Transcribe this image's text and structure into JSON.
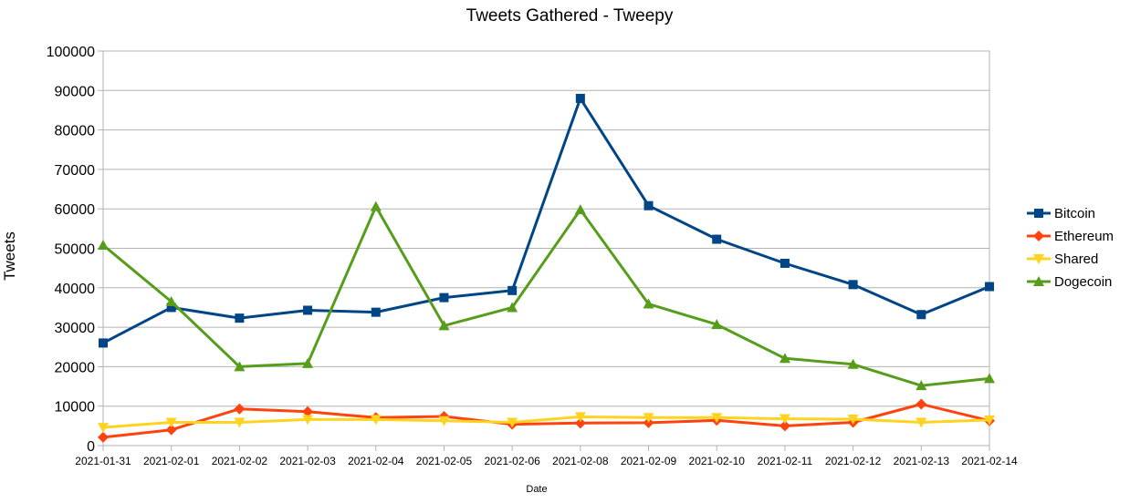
{
  "chart_data": {
    "type": "line",
    "title": "Tweets Gathered - Tweepy",
    "xlabel": "Date",
    "ylabel": "Tweets",
    "ylim": [
      0,
      100000
    ],
    "yticks": [
      "0",
      "10000",
      "20000",
      "30000",
      "40000",
      "50000",
      "60000",
      "70000",
      "80000",
      "90000",
      "100000"
    ],
    "grid": true,
    "legend_position": "right",
    "categories": [
      "2021-01-31",
      "2021-02-01",
      "2021-02-02",
      "2021-02-03",
      "2021-02-04",
      "2021-02-05",
      "2021-02-06",
      "2021-02-08",
      "2021-02-09",
      "2021-02-10",
      "2021-02-11",
      "2021-02-12",
      "2021-02-13",
      "2021-02-14"
    ],
    "series": [
      {
        "name": "Bitcoin",
        "color": "#004586",
        "marker": "square",
        "values": [
          26000,
          35000,
          32300,
          34300,
          33800,
          37500,
          39300,
          88000,
          60800,
          52300,
          46200,
          40800,
          33200,
          40300
        ]
      },
      {
        "name": "Ethereum",
        "color": "#ff420e",
        "marker": "diamond",
        "values": [
          2100,
          4000,
          9300,
          8600,
          7100,
          7400,
          5400,
          5700,
          5800,
          6400,
          5000,
          5900,
          10500,
          6300
        ]
      },
      {
        "name": "Shared",
        "color": "#ffd320",
        "marker": "triangle-down",
        "values": [
          4600,
          5900,
          5900,
          6600,
          6600,
          6300,
          5900,
          7300,
          7100,
          7100,
          6800,
          6700,
          5900,
          6500
        ]
      },
      {
        "name": "Dogecoin",
        "color": "#579d1c",
        "marker": "triangle-up",
        "values": [
          50800,
          36500,
          20000,
          20800,
          60600,
          30400,
          35000,
          59800,
          35900,
          30700,
          22100,
          20600,
          15200,
          17000
        ]
      }
    ]
  }
}
